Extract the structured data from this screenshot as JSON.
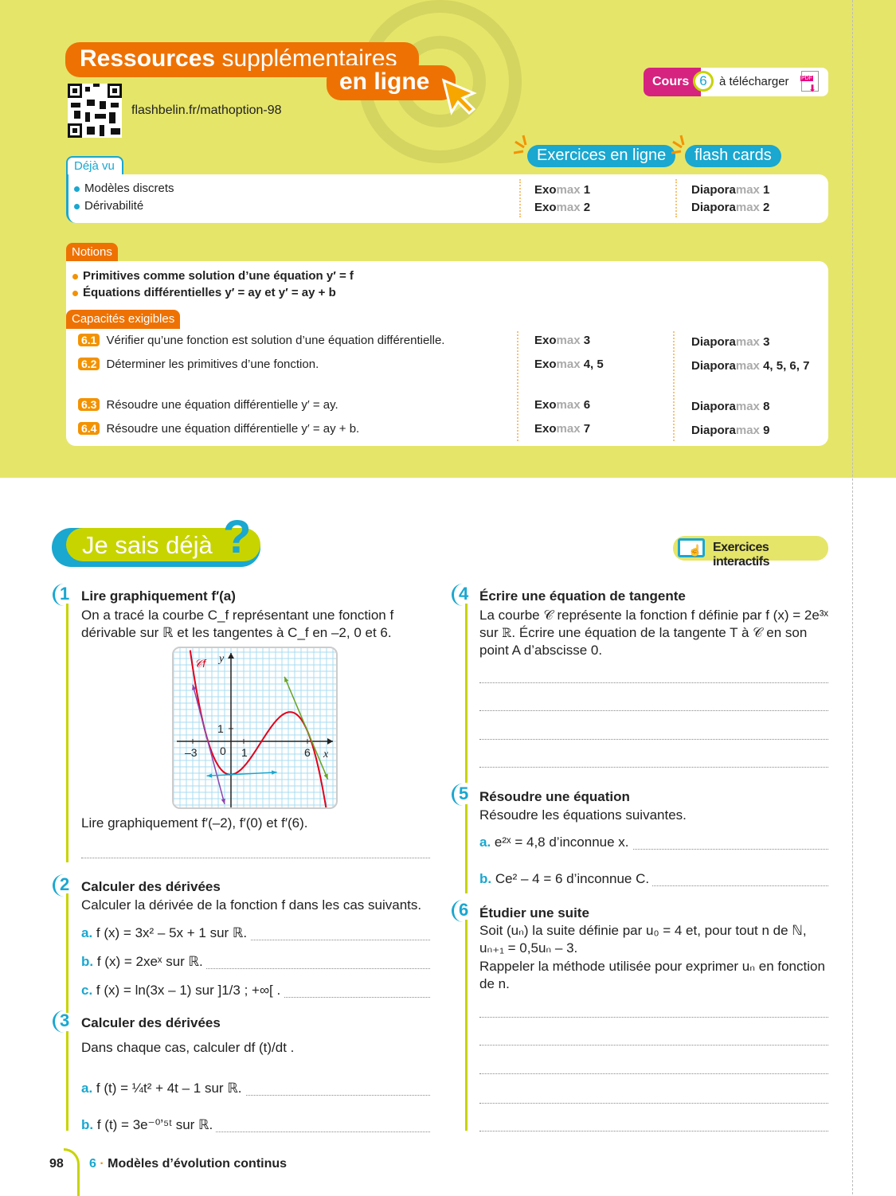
{
  "header": {
    "title_bold": "Ressources",
    "title_light": "supplémentaires",
    "title_line2": "en ligne",
    "url": "flashbelin.fr/mathoption-98",
    "cours_label": "Cours",
    "cours_number": "6",
    "cours_text": "à télécharger",
    "pdf_icon_text": "PDF"
  },
  "tags": {
    "exercices": "Exercices en ligne",
    "flash": "flash cards"
  },
  "deja_vu": {
    "label": "Déjà vu",
    "items": [
      "Modèles discrets",
      "Dérivabilité"
    ],
    "exo": [
      "Exo",
      "max",
      " 1",
      "Exo",
      "max",
      " 2"
    ],
    "diapo": [
      "Diapora",
      "max",
      " 1",
      "Diapora",
      "max",
      " 2"
    ]
  },
  "notions": {
    "label": "Notions",
    "items": [
      "Primitives comme solution d’une équation y′ = f",
      "Équations différentielles y′ = ay et y′ = ay + b"
    ]
  },
  "capacites": {
    "label": "Capacités exigibles",
    "rows": [
      {
        "code": "6.1",
        "text": "Vérifier qu’une fonction est solution d’une équation différentielle.",
        "exo": "3",
        "diapo": "3"
      },
      {
        "code": "6.2",
        "text": "Déterminer les primitives d’une fonction.",
        "exo": "4, 5",
        "diapo": "4, 5, 6, 7"
      },
      {
        "code": "6.3",
        "text": "Résoudre une équation différentielle y′ = ay.",
        "exo": "6",
        "diapo": "8"
      },
      {
        "code": "6.4",
        "text": "Résoudre une équation différentielle y′ = ay + b.",
        "exo": "7",
        "diapo": "9"
      }
    ],
    "exo_prefix": "Exo",
    "diapo_prefix": "Diapora",
    "max": "max"
  },
  "section": {
    "title": "Je sais déjà",
    "qmark": "?",
    "interactive": "Exercices interactifs"
  },
  "exercises": [
    {
      "num": "1",
      "title": "Lire graphiquement f′(a)",
      "body": "On a tracé la courbe C_f représentant une fonction f dérivable sur ℝ et les tangentes à C_f en –2, 0 et 6.",
      "question": "Lire graphiquement  f′(–2),  f′(0) et  f′(6)."
    },
    {
      "num": "2",
      "title": "Calculer des dérivées",
      "body": "Calculer la dérivée de la fonction f dans les cas suivants.",
      "items": [
        {
          "l": "a.",
          "t": "f (x) = 3x² – 5x + 1 sur ℝ."
        },
        {
          "l": "b.",
          "t": "f (x) = 2xeˣ sur ℝ."
        },
        {
          "l": "c.",
          "t": "f (x) = ln(3x – 1) sur ]1/3 ; +∞[ ."
        }
      ]
    },
    {
      "num": "3",
      "title": "Calculer des dérivées",
      "body": "Dans chaque cas, calculer df (t)/dt .",
      "items": [
        {
          "l": "a.",
          "t": "f (t) = ¼t² + 4t – 1 sur ℝ."
        },
        {
          "l": "b.",
          "t": "f (t) = 3e⁻⁰ʼ⁵ᵗ sur ℝ."
        }
      ]
    },
    {
      "num": "4",
      "title": "Écrire une équation de tangente",
      "body": "La courbe 𝒞 représente la fonction f définie par f (x) = 2e³ˣ sur ℝ. Écrire une équation de la tangente T à 𝒞 en son point A d’abscisse 0."
    },
    {
      "num": "5",
      "title": "Résoudre une équation",
      "body": "Résoudre les équations suivantes.",
      "items": [
        {
          "l": "a.",
          "t": "e²ˣ = 4,8 d’inconnue x."
        },
        {
          "l": "b.",
          "t": "Ce² – 4 = 6 d’inconnue C."
        }
      ]
    },
    {
      "num": "6",
      "title": "Étudier une suite",
      "body": "Soit (uₙ) la suite définie par u₀ = 4 et, pour tout n de ℕ, uₙ₊₁ = 0,5uₙ – 3.",
      "body2": "Rappeler la méthode utilisée pour exprimer uₙ en fonction de n."
    }
  ],
  "graph": {
    "curve_label": "𝒞f",
    "x_label": "x",
    "y_label": "y",
    "ticks": {
      "x_neg": "–3",
      "origin": "0",
      "x1": "1",
      "x6": "6",
      "y1": "1"
    },
    "colors": {
      "curve": "#e3001b",
      "tangent_m2": "#8e44ad",
      "tangent_0": "#1aa7d0",
      "tangent_6": "#6aa121",
      "grid": "#a8dcf0"
    }
  },
  "footer": {
    "page": "98",
    "chapter_num": "6",
    "chapter": "Modèles d’évolution continus"
  },
  "colors": {
    "yellow": "#e5e56a",
    "orange": "#ee7203",
    "blue": "#1aa7d0",
    "magenta": "#d6237f",
    "lime": "#c7d400"
  }
}
